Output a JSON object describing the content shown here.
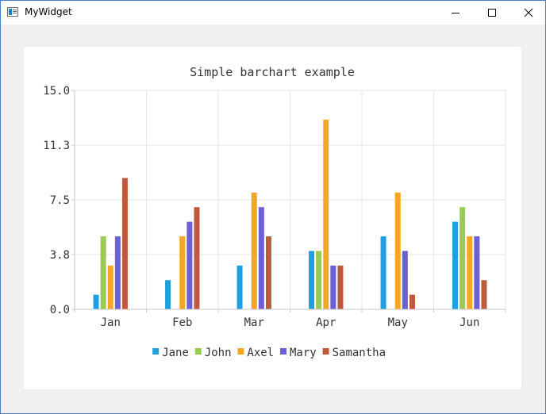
{
  "window": {
    "title": "MyWidget"
  },
  "colors": {
    "Jane": "#209fdf",
    "John": "#99ca53",
    "Axel": "#f6a625",
    "Mary": "#6d5fd5",
    "Samantha": "#bf593e",
    "grid": "#e6e6e6",
    "axis": "#c8c8c8",
    "text": "#333333"
  },
  "chart_data": {
    "type": "bar",
    "title": "Simple barchart example",
    "categories": [
      "Jan",
      "Feb",
      "Mar",
      "Apr",
      "May",
      "Jun"
    ],
    "series": [
      {
        "name": "Jane",
        "values": [
          1,
          2,
          3,
          4,
          5,
          6
        ]
      },
      {
        "name": "John",
        "values": [
          5,
          0,
          0,
          4,
          0,
          7
        ]
      },
      {
        "name": "Axel",
        "values": [
          3,
          5,
          8,
          13,
          8,
          5
        ]
      },
      {
        "name": "Mary",
        "values": [
          5,
          6,
          7,
          3,
          4,
          5
        ]
      },
      {
        "name": "Samantha",
        "values": [
          9,
          7,
          5,
          3,
          1,
          2
        ]
      }
    ],
    "ylim": [
      0,
      15
    ],
    "yticks": [
      "0.0",
      "3.8",
      "7.5",
      "11.3",
      "15.0"
    ],
    "grid": true,
    "legend_position": "bottom"
  }
}
